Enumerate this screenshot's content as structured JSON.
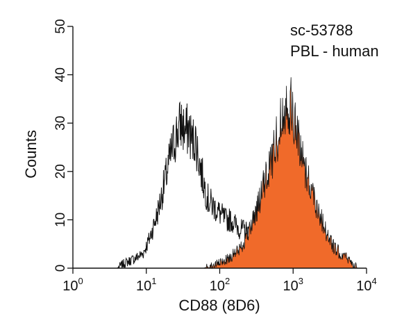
{
  "chart_data": {
    "type": "area",
    "x_scale": "log",
    "xlim": [
      1,
      10000
    ],
    "ylim": [
      0,
      50
    ],
    "y_ticks": [
      0,
      10,
      20,
      30,
      40,
      50
    ],
    "x_ticks": [
      {
        "base": "10",
        "exp": "0",
        "value": 1
      },
      {
        "base": "10",
        "exp": "1",
        "value": 10
      },
      {
        "base": "10",
        "exp": "2",
        "value": 100
      },
      {
        "base": "10",
        "exp": "3",
        "value": 1000
      },
      {
        "base": "10",
        "exp": "4",
        "value": 10000
      }
    ],
    "xlabel": "CD88 (8D6)",
    "ylabel": "Counts",
    "grid": false,
    "annotations": [
      "sc-53788",
      "PBL - human"
    ],
    "colors": {
      "filled": "#f06a2a",
      "outline": "#111111",
      "axis": "#111111"
    },
    "series": [
      {
        "style": "outline",
        "x": [
          1.0,
          4.0,
          5.0,
          7.0,
          9.0,
          11.0,
          14.0,
          18.0,
          22.0,
          26.0,
          30.0,
          34.0,
          38.0,
          42.0,
          46.0,
          50.0,
          56.0,
          62.0,
          70.0,
          80.0,
          92.0,
          105.0,
          120.0,
          140.0,
          165.0,
          190.0,
          220.0,
          260.0,
          300.0,
          350.0,
          420.0,
          500.0,
          600.0,
          750.0,
          900.0,
          1100.0,
          1400.0,
          2000.0,
          10000.0
        ],
        "values": [
          0,
          0,
          1,
          2,
          3,
          6,
          11,
          18,
          24,
          28,
          30,
          28,
          29,
          26,
          27,
          24,
          20,
          17,
          14,
          13,
          12,
          11,
          10,
          10,
          9,
          8,
          8,
          7,
          5,
          4,
          3,
          3,
          2,
          2,
          1,
          1,
          0,
          0,
          0
        ]
      },
      {
        "style": "filled",
        "x": [
          1.0,
          60.0,
          100.0,
          130.0,
          160.0,
          190.0,
          220.0,
          260.0,
          300.0,
          350.0,
          400.0,
          460.0,
          520.0,
          580.0,
          650.0,
          720.0,
          800.0,
          870.0,
          950.0,
          1050.0,
          1150.0,
          1300.0,
          1450.0,
          1650.0,
          1900.0,
          2200.0,
          2600.0,
          3100.0,
          3700.0,
          4500.0,
          5500.0,
          6500.0,
          7500.0,
          10000.0
        ],
        "values": [
          0,
          0,
          1,
          2,
          3,
          4,
          6,
          8,
          11,
          14,
          17,
          20,
          23,
          26,
          29,
          32,
          35,
          34,
          33,
          30,
          27,
          24,
          21,
          18,
          15,
          12,
          9,
          6,
          4,
          3,
          2,
          1,
          0,
          0
        ]
      }
    ]
  }
}
